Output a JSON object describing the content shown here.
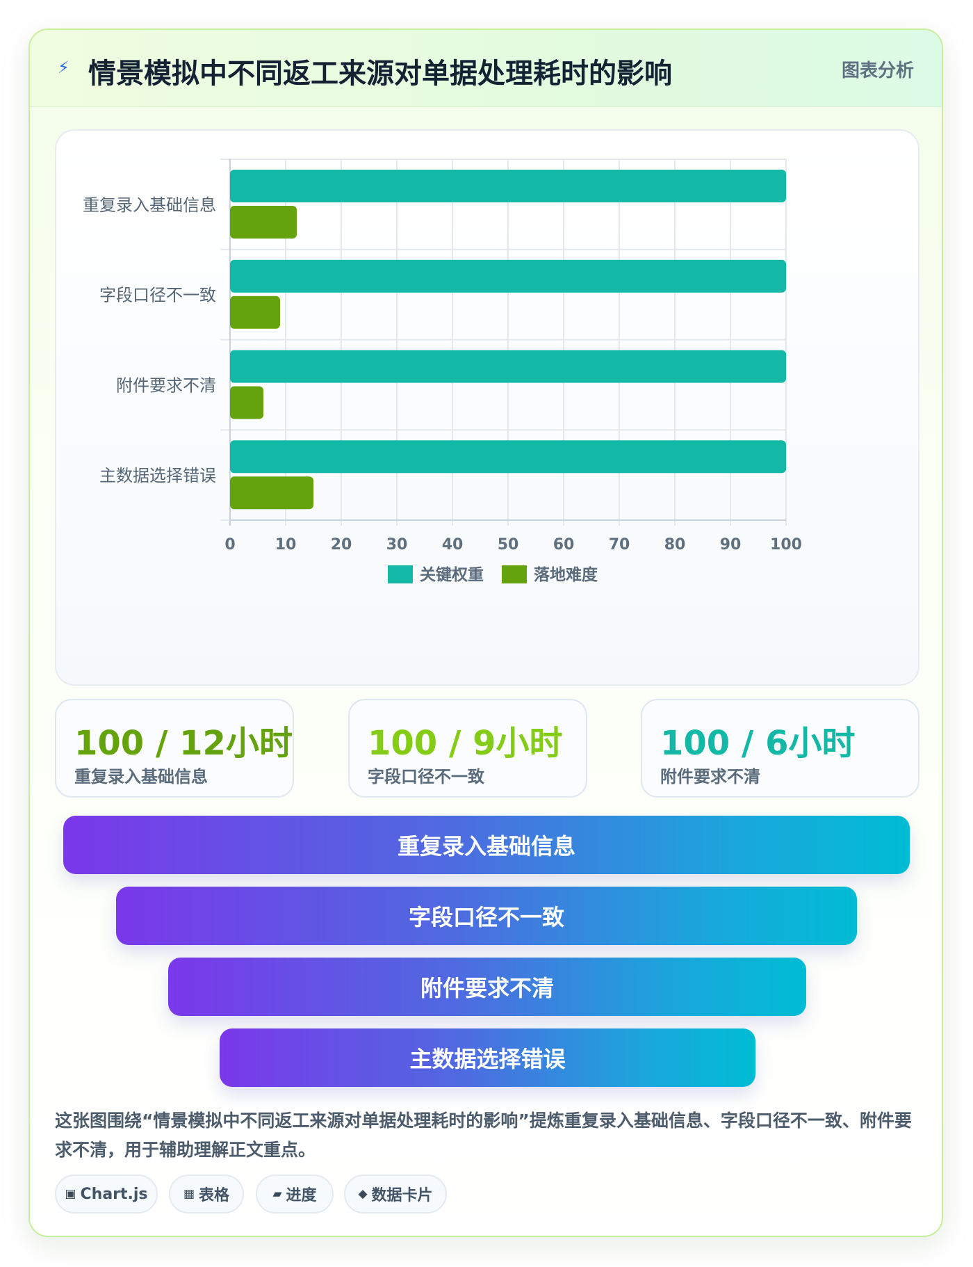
{
  "header": {
    "title": "情景模拟中不同返工来源对单据处理耗时的影响",
    "tag": "图表分析",
    "icon": "lightning-icon"
  },
  "chart_data": {
    "type": "bar",
    "orientation": "horizontal",
    "categories": [
      "重复录入基础信息",
      "字段口径不一致",
      "附件要求不清",
      "主数据选择错误"
    ],
    "series": [
      {
        "name": "关键权重",
        "color": "#14b8a6",
        "values": [
          100,
          100,
          100,
          100
        ]
      },
      {
        "name": "落地难度",
        "color": "#65a30d",
        "values": [
          12,
          9,
          6,
          15
        ]
      }
    ],
    "xlim": [
      0,
      100
    ],
    "xticks": [
      "0",
      "10",
      "20",
      "30",
      "40",
      "50",
      "60",
      "70",
      "80",
      "90",
      "100"
    ],
    "grid": true,
    "legend": "bottom"
  },
  "stats": [
    {
      "value": "100 / 12小时",
      "label": "重复录入基础信息",
      "color": "#65a30d"
    },
    {
      "value": "100 / 9小时",
      "label": "字段口径不一致",
      "color": "#84cc16"
    },
    {
      "value": "100 / 6小时",
      "label": "附件要求不清",
      "color": "#14b8a6"
    }
  ],
  "funnel": [
    "重复录入基础信息",
    "字段口径不一致",
    "附件要求不清",
    "主数据选择错误"
  ],
  "description": "这张图围绕“情景模拟中不同返工来源对单据处理耗时的影响”提炼重复录入基础信息、字段口径不一致、附件要求不清，用于辅助理解正文重点。",
  "pills": [
    {
      "icon": "▣",
      "label": "Chart.js"
    },
    {
      "icon": "▦",
      "label": "表格"
    },
    {
      "icon": "▰",
      "label": "进度"
    },
    {
      "icon": "◆",
      "label": "数据卡片"
    }
  ]
}
